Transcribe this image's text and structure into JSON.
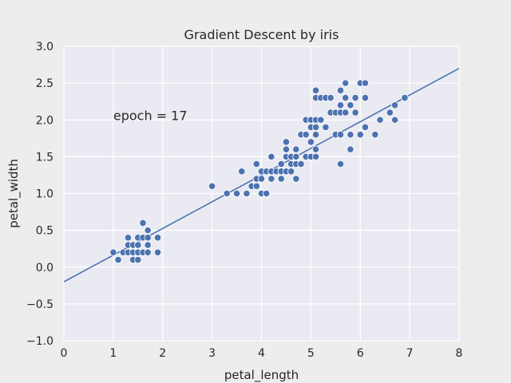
{
  "chart_data": {
    "type": "scatter",
    "title": "Gradient Descent by iris",
    "xlabel": "petal_length",
    "ylabel": "petal_width",
    "xlim": [
      0,
      8
    ],
    "ylim": [
      -1.0,
      3.0
    ],
    "xticks": [
      "0",
      "1",
      "2",
      "3",
      "4",
      "5",
      "6",
      "7",
      "8"
    ],
    "yticks": [
      "−1.0",
      "−0.5",
      "0.0",
      "0.5",
      "1.0",
      "1.5",
      "2.0",
      "2.5",
      "3.0"
    ],
    "grid": true,
    "annotation": {
      "text": "epoch = 17",
      "x": 1.0,
      "y": 2.0
    },
    "fit_line": {
      "x": [
        0,
        8
      ],
      "y": [
        -0.2,
        2.7
      ]
    },
    "points": [
      [
        1.0,
        0.2
      ],
      [
        1.1,
        0.1
      ],
      [
        1.2,
        0.2
      ],
      [
        1.3,
        0.2
      ],
      [
        1.3,
        0.3
      ],
      [
        1.3,
        0.4
      ],
      [
        1.4,
        0.1
      ],
      [
        1.4,
        0.2
      ],
      [
        1.4,
        0.3
      ],
      [
        1.5,
        0.1
      ],
      [
        1.5,
        0.2
      ],
      [
        1.5,
        0.3
      ],
      [
        1.5,
        0.4
      ],
      [
        1.6,
        0.2
      ],
      [
        1.6,
        0.4
      ],
      [
        1.6,
        0.6
      ],
      [
        1.7,
        0.2
      ],
      [
        1.7,
        0.3
      ],
      [
        1.7,
        0.4
      ],
      [
        1.7,
        0.5
      ],
      [
        1.9,
        0.2
      ],
      [
        1.9,
        0.4
      ],
      [
        3.0,
        1.1
      ],
      [
        3.3,
        1.0
      ],
      [
        3.5,
        1.0
      ],
      [
        3.6,
        1.3
      ],
      [
        3.7,
        1.0
      ],
      [
        3.8,
        1.1
      ],
      [
        3.9,
        1.1
      ],
      [
        3.9,
        1.2
      ],
      [
        3.9,
        1.4
      ],
      [
        4.0,
        1.0
      ],
      [
        4.0,
        1.2
      ],
      [
        4.0,
        1.3
      ],
      [
        4.1,
        1.0
      ],
      [
        4.1,
        1.3
      ],
      [
        4.2,
        1.2
      ],
      [
        4.2,
        1.3
      ],
      [
        4.2,
        1.5
      ],
      [
        4.3,
        1.3
      ],
      [
        4.4,
        1.2
      ],
      [
        4.4,
        1.3
      ],
      [
        4.4,
        1.4
      ],
      [
        4.5,
        1.3
      ],
      [
        4.5,
        1.5
      ],
      [
        4.5,
        1.6
      ],
      [
        4.5,
        1.7
      ],
      [
        4.6,
        1.3
      ],
      [
        4.6,
        1.4
      ],
      [
        4.6,
        1.5
      ],
      [
        4.7,
        1.2
      ],
      [
        4.7,
        1.4
      ],
      [
        4.7,
        1.5
      ],
      [
        4.7,
        1.6
      ],
      [
        4.8,
        1.4
      ],
      [
        4.8,
        1.8
      ],
      [
        4.9,
        1.5
      ],
      [
        4.9,
        1.8
      ],
      [
        4.9,
        2.0
      ],
      [
        5.0,
        1.5
      ],
      [
        5.0,
        1.7
      ],
      [
        5.0,
        1.9
      ],
      [
        5.0,
        2.0
      ],
      [
        5.1,
        1.5
      ],
      [
        5.1,
        1.6
      ],
      [
        5.1,
        1.8
      ],
      [
        5.1,
        1.9
      ],
      [
        5.1,
        2.0
      ],
      [
        5.1,
        2.3
      ],
      [
        5.1,
        2.4
      ],
      [
        5.2,
        2.0
      ],
      [
        5.2,
        2.3
      ],
      [
        5.3,
        1.9
      ],
      [
        5.3,
        2.3
      ],
      [
        5.4,
        2.1
      ],
      [
        5.4,
        2.3
      ],
      [
        5.5,
        1.8
      ],
      [
        5.5,
        2.1
      ],
      [
        5.6,
        1.4
      ],
      [
        5.6,
        1.8
      ],
      [
        5.6,
        2.1
      ],
      [
        5.6,
        2.2
      ],
      [
        5.6,
        2.4
      ],
      [
        5.7,
        2.1
      ],
      [
        5.7,
        2.3
      ],
      [
        5.7,
        2.5
      ],
      [
        5.8,
        1.6
      ],
      [
        5.8,
        1.8
      ],
      [
        5.8,
        2.2
      ],
      [
        5.9,
        2.1
      ],
      [
        5.9,
        2.3
      ],
      [
        6.0,
        1.8
      ],
      [
        6.0,
        2.5
      ],
      [
        6.1,
        1.9
      ],
      [
        6.1,
        2.3
      ],
      [
        6.1,
        2.5
      ],
      [
        6.3,
        1.8
      ],
      [
        6.4,
        2.0
      ],
      [
        6.6,
        2.1
      ],
      [
        6.7,
        2.0
      ],
      [
        6.7,
        2.2
      ],
      [
        6.9,
        2.3
      ]
    ],
    "colors": {
      "point": "#4c72b0",
      "line": "#4c72b0",
      "plot_bg": "#eaeaf2",
      "fig_bg": "#ededed",
      "grid": "#ffffff"
    }
  }
}
